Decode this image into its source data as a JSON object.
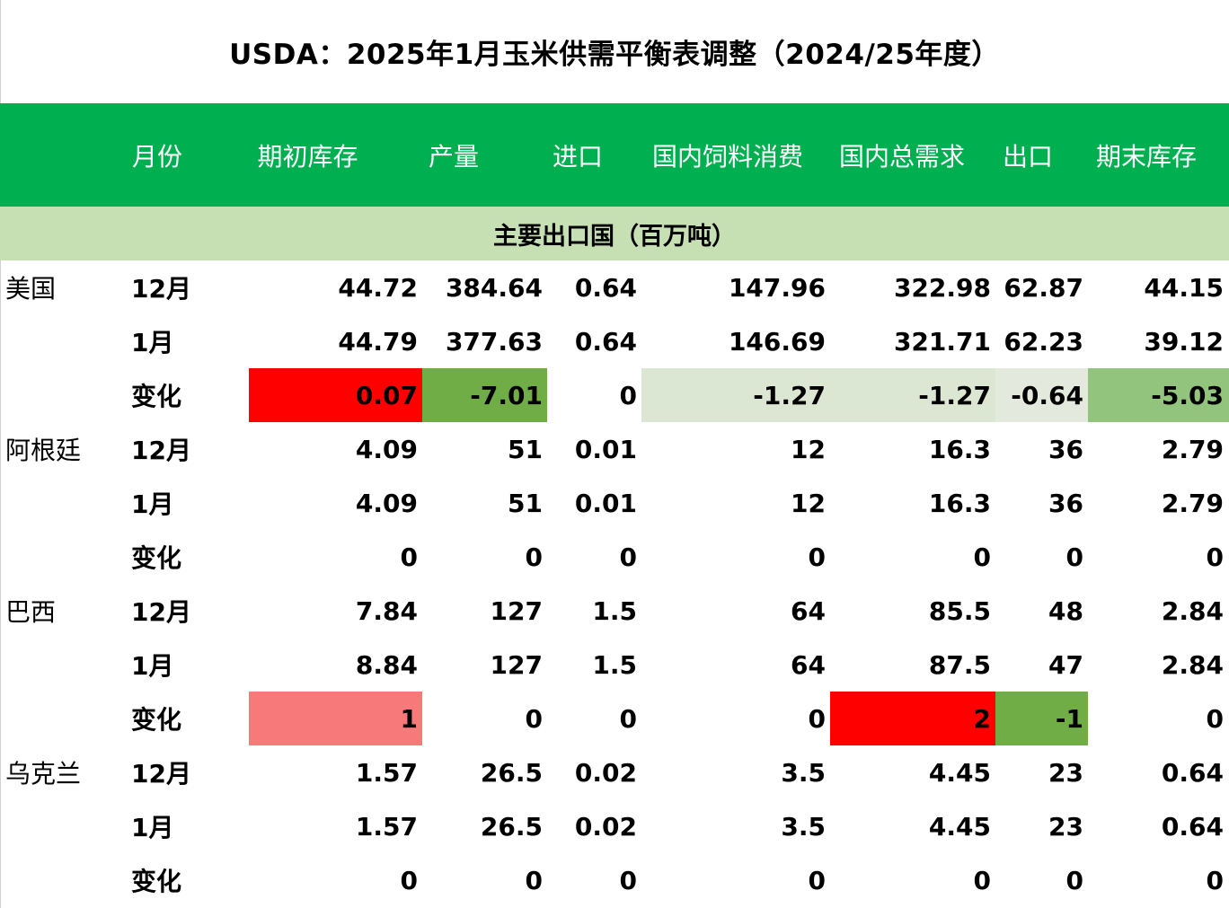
{
  "title": "USDA：2025年1月玉米供需平衡表调整（2024/25年度）",
  "headers": [
    "月份",
    "期初库存",
    "产量",
    "进口",
    "国内饲料消费",
    "国内总需求",
    "出口",
    "期末库存"
  ],
  "section_label": "主要出口国（百万吨）",
  "colors": {
    "header_bg": "#00b050",
    "section_bg": "#c6e0b4",
    "red": "#ff0000",
    "light_red": "#f8797a",
    "green": "#70ad47",
    "mid_green": "#93c47d",
    "pale_green": "#dbe6d3",
    "pale_gray_green": "#e3eadd"
  },
  "rows": [
    {
      "country": "美国",
      "month": "12月",
      "values": [
        "44.72",
        "384.64",
        "0.64",
        "147.96",
        "322.98",
        "62.87",
        "44.15"
      ]
    },
    {
      "country": "",
      "month": "1月",
      "values": [
        "44.79",
        "377.63",
        "0.64",
        "146.69",
        "321.71",
        "62.23",
        "39.12"
      ]
    },
    {
      "country": "",
      "month": "变化",
      "values": [
        "0.07",
        "-7.01",
        "0",
        "-1.27",
        "-1.27",
        "-0.64",
        "-5.03"
      ],
      "fills": [
        "#ff0000",
        "#70ad47",
        "",
        "#dbe6d3",
        "#dbe6d3",
        "#e3eadd",
        "#93c47d"
      ]
    },
    {
      "country": "阿根廷",
      "month": "12月",
      "values": [
        "4.09",
        "51",
        "0.01",
        "12",
        "16.3",
        "36",
        "2.79"
      ]
    },
    {
      "country": "",
      "month": "1月",
      "values": [
        "4.09",
        "51",
        "0.01",
        "12",
        "16.3",
        "36",
        "2.79"
      ]
    },
    {
      "country": "",
      "month": "变化",
      "values": [
        "0",
        "0",
        "0",
        "0",
        "0",
        "0",
        "0"
      ]
    },
    {
      "country": "巴西",
      "month": "12月",
      "values": [
        "7.84",
        "127",
        "1.5",
        "64",
        "85.5",
        "48",
        "2.84"
      ]
    },
    {
      "country": "",
      "month": "1月",
      "values": [
        "8.84",
        "127",
        "1.5",
        "64",
        "87.5",
        "47",
        "2.84"
      ]
    },
    {
      "country": "",
      "month": "变化",
      "values": [
        "1",
        "0",
        "0",
        "0",
        "2",
        "-1",
        "0"
      ],
      "fills": [
        "#f8797a",
        "",
        "",
        "",
        "#ff0000",
        "#70ad47",
        ""
      ]
    },
    {
      "country": "乌克兰",
      "month": "12月",
      "values": [
        "1.57",
        "26.5",
        "0.02",
        "3.5",
        "4.45",
        "23",
        "0.64"
      ]
    },
    {
      "country": "",
      "month": "1月",
      "values": [
        "1.57",
        "26.5",
        "0.02",
        "3.5",
        "4.45",
        "23",
        "0.64"
      ]
    },
    {
      "country": "",
      "month": "变化",
      "values": [
        "0",
        "0",
        "0",
        "0",
        "0",
        "0",
        "0"
      ]
    }
  ]
}
